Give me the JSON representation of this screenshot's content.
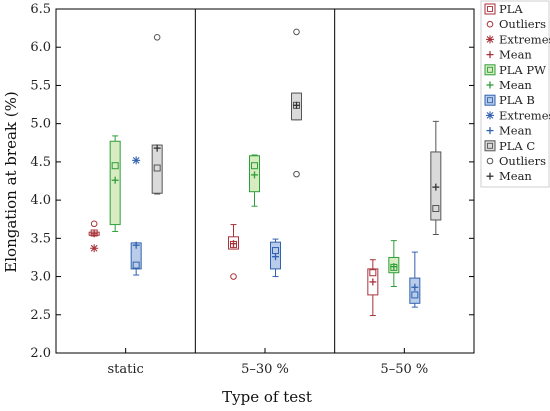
{
  "chart_data": {
    "type": "box",
    "xlabel": "Type of test",
    "ylabel": "Elongation at break (%)",
    "ylim": [
      2.0,
      6.5
    ],
    "yticks": [
      "2.0",
      "2.5",
      "3.0",
      "3.5",
      "4.0",
      "4.5",
      "5.0",
      "5.5",
      "6.0",
      "6.5"
    ],
    "categories": [
      "static",
      "5–30 %",
      "5–50 %"
    ],
    "grid": false,
    "legend_position": "right",
    "series": [
      {
        "name": "PLA",
        "color": "#a8323a",
        "fill": "#ffffff",
        "median_marker": "square",
        "boxes": [
          {
            "category": "static",
            "q1": 3.54,
            "q3": 3.58,
            "median": 3.57,
            "mean": 3.56,
            "min": 3.54,
            "max": 3.58,
            "outliers": [
              3.69
            ],
            "extremes": [
              3.37
            ]
          },
          {
            "category": "5–30 %",
            "q1": 3.36,
            "q3": 3.52,
            "median": 3.42,
            "mean": 3.43,
            "min": 3.36,
            "max": 3.68,
            "outliers": [
              3.0
            ],
            "extremes": []
          },
          {
            "category": "5–50 %",
            "q1": 2.76,
            "q3": 3.1,
            "median": 3.05,
            "mean": 2.93,
            "min": 2.49,
            "max": 3.22,
            "outliers": [],
            "extremes": []
          }
        ]
      },
      {
        "name": "PLA PW",
        "color": "#2f9e3a",
        "fill": "#d7ecc0",
        "median_marker": "square",
        "boxes": [
          {
            "category": "static",
            "q1": 3.68,
            "q3": 4.77,
            "median": 4.45,
            "mean": 4.26,
            "min": 3.59,
            "max": 4.84,
            "outliers": [],
            "extremes": []
          },
          {
            "category": "5–30 %",
            "q1": 4.11,
            "q3": 4.58,
            "median": 4.45,
            "mean": 4.33,
            "min": 3.92,
            "max": 4.59,
            "outliers": [],
            "extremes": []
          },
          {
            "category": "5–50 %",
            "q1": 3.05,
            "q3": 3.25,
            "median": 3.12,
            "mean": 3.13,
            "min": 2.87,
            "max": 3.47,
            "outliers": [],
            "extremes": []
          }
        ]
      },
      {
        "name": "PLA B",
        "color": "#3162b0",
        "fill": "#b9cdea",
        "median_marker": "square",
        "boxes": [
          {
            "category": "static",
            "q1": 3.1,
            "q3": 3.44,
            "median": 3.15,
            "mean": 3.41,
            "min": 3.02,
            "max": 3.44,
            "outliers": [],
            "extremes": [
              4.52
            ]
          },
          {
            "category": "5–30 %",
            "q1": 3.1,
            "q3": 3.45,
            "median": 3.34,
            "mean": 3.26,
            "min": 3.0,
            "max": 3.49,
            "outliers": [],
            "extremes": []
          },
          {
            "category": "5–50 %",
            "q1": 2.65,
            "q3": 2.98,
            "median": 2.76,
            "mean": 2.86,
            "min": 2.6,
            "max": 3.32,
            "outliers": [],
            "extremes": []
          }
        ]
      },
      {
        "name": "PLA C",
        "color": "#555555",
        "fill": "#dadada",
        "median_marker": "square",
        "boxes": [
          {
            "category": "static",
            "q1": 4.09,
            "q3": 4.72,
            "median": 4.42,
            "mean": 4.68,
            "min": 4.08,
            "max": 4.72,
            "outliers": [
              6.13
            ],
            "extremes": []
          },
          {
            "category": "5–30 %",
            "q1": 5.05,
            "q3": 5.4,
            "median": 5.24,
            "mean": 5.24,
            "min": 5.05,
            "max": 5.4,
            "outliers": [
              6.2,
              4.34
            ],
            "extremes": []
          },
          {
            "category": "5–50 %",
            "q1": 3.74,
            "q3": 4.63,
            "median": 3.89,
            "mean": 4.17,
            "min": 3.55,
            "max": 5.03,
            "outliers": [],
            "extremes": []
          }
        ]
      }
    ],
    "legend": [
      {
        "label": "PLA",
        "symbol": "box",
        "color": "#a8323a",
        "fill": "#ffffff"
      },
      {
        "label": "Outliers",
        "symbol": "circle",
        "color": "#a8323a"
      },
      {
        "label": "Extremes",
        "symbol": "star",
        "color": "#a8323a"
      },
      {
        "label": "Mean",
        "symbol": "plus",
        "color": "#a8323a"
      },
      {
        "label": "PLA PW",
        "symbol": "box",
        "color": "#2f9e3a",
        "fill": "#d7ecc0"
      },
      {
        "label": "Mean",
        "symbol": "plus",
        "color": "#2f9e3a"
      },
      {
        "label": "PLA B",
        "symbol": "box",
        "color": "#3162b0",
        "fill": "#b9cdea"
      },
      {
        "label": "Extremes",
        "symbol": "star",
        "color": "#3162b0"
      },
      {
        "label": "Mean",
        "symbol": "plus",
        "color": "#3162b0"
      },
      {
        "label": "PLA C",
        "symbol": "box",
        "color": "#555555",
        "fill": "#dadada"
      },
      {
        "label": "Outliers",
        "symbol": "circle",
        "color": "#555555"
      },
      {
        "label": "Mean",
        "symbol": "plus",
        "color": "#333333"
      }
    ]
  }
}
